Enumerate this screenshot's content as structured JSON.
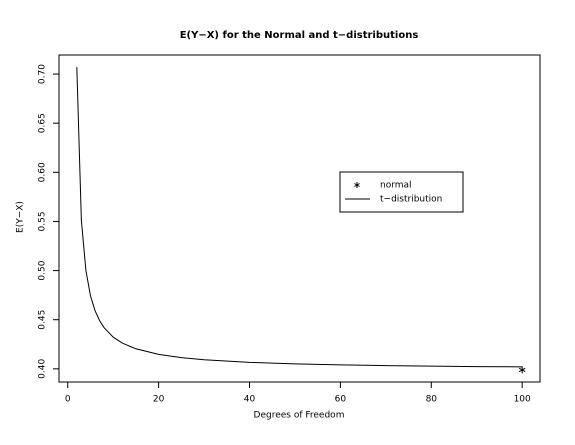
{
  "chart_data": {
    "type": "line",
    "title": "E(Y−X) for the Normal and t−distributions",
    "x_label": "Degrees of Freedom",
    "y_label": "E(Y−X)",
    "xlim": [
      -1.92,
      103.92
    ],
    "ylim": [
      0.3866,
      0.7194
    ],
    "xticks": [
      0,
      20,
      40,
      60,
      80,
      100
    ],
    "yticks": [
      {
        "value": 0.4,
        "label": "0.40"
      },
      {
        "value": 0.45,
        "label": "0.45"
      },
      {
        "value": 0.5,
        "label": "0.50"
      },
      {
        "value": 0.55,
        "label": "0.55"
      },
      {
        "value": 0.6,
        "label": "0.60"
      },
      {
        "value": 0.65,
        "label": "0.65"
      },
      {
        "value": 0.7,
        "label": "0.70"
      }
    ],
    "legend_position": "right",
    "series": [
      {
        "name": "normal",
        "color": "#000000",
        "marker": "asterisk",
        "x": [
          100
        ],
        "values": [
          0.3989
        ]
      },
      {
        "name": "t−distribution",
        "color": "#000000",
        "marker": "line",
        "x": [
          2,
          3,
          4,
          5,
          6,
          7,
          8,
          10,
          12,
          15,
          20,
          25,
          30,
          40,
          50,
          60,
          70,
          80,
          90,
          100
        ],
        "values": [
          0.7071,
          0.5513,
          0.5,
          0.4745,
          0.4593,
          0.4492,
          0.4419,
          0.4323,
          0.4262,
          0.4204,
          0.4147,
          0.4114,
          0.4093,
          0.4066,
          0.405,
          0.404,
          0.4033,
          0.4027,
          0.4023,
          0.402
        ]
      }
    ]
  }
}
